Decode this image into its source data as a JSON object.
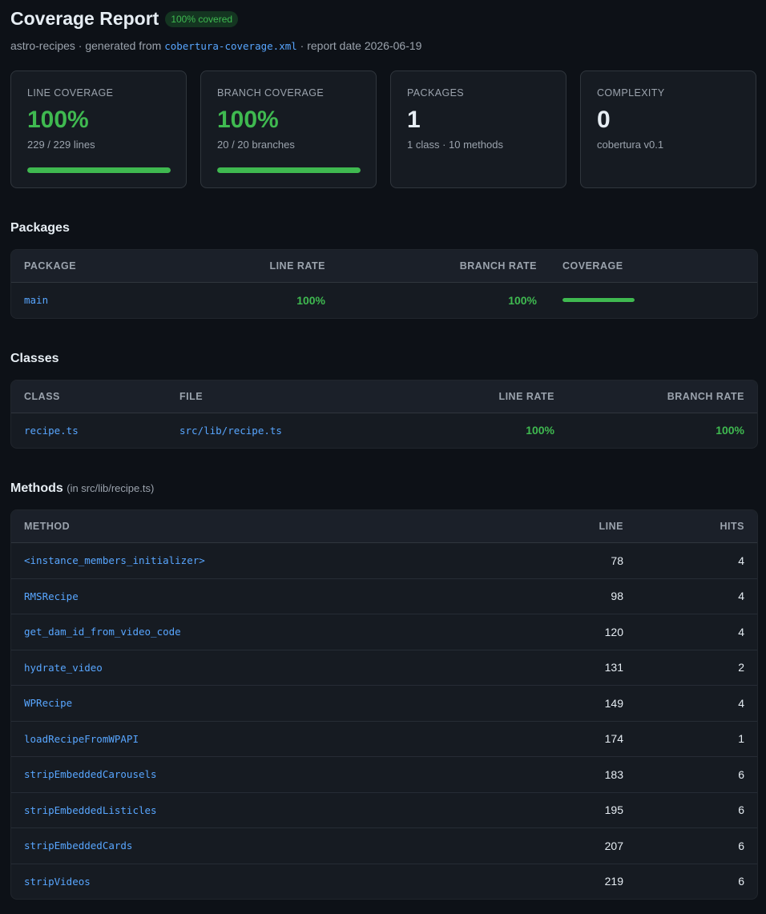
{
  "header": {
    "title": "Coverage Report",
    "badge": "100% covered",
    "subtitle": {
      "project": "astro-recipes · generated from",
      "source_file": "cobertura-coverage.xml",
      "report_date": "· report date 2026-06-19"
    }
  },
  "summary_cards": [
    {
      "label": "LINE COVERAGE",
      "value": {
        "value": 100,
        "label": "100%"
      },
      "detail": "229 / 229 lines",
      "progress_bar": true
    },
    {
      "label": "BRANCH COVERAGE",
      "value": {
        "value": 100,
        "label": "100%"
      },
      "detail": "20 / 20 branches",
      "progress_bar": true
    },
    {
      "label": "PACKAGES",
      "value": 1,
      "detail": "1 class · 10 methods",
      "progress_bar": false
    },
    {
      "label": "COMPLEXITY",
      "value": 0,
      "detail": "cobertura v0.1",
      "progress_bar": false
    }
  ],
  "packages": {
    "title": "Packages",
    "columns": [
      "PACKAGE",
      "LINE RATE",
      "BRANCH RATE",
      "COVERAGE"
    ],
    "rows": [
      [
        "main",
        {
          "value": 100,
          "label": "100%"
        },
        {
          "value": 100,
          "label": "100%"
        }
      ]
    ]
  },
  "classes": {
    "title": "Classes",
    "columns": [
      "CLASS",
      "FILE",
      "LINE RATE",
      "BRANCH RATE"
    ],
    "rows": [
      [
        "recipe.ts",
        "src/lib/recipe.ts",
        {
          "value": 100,
          "label": "100%"
        },
        {
          "value": 100,
          "label": "100%"
        }
      ]
    ]
  },
  "methods": {
    "title": "Methods",
    "note": "(in src/lib/recipe.ts)",
    "columns": [
      "METHOD",
      "LINE",
      "HITS"
    ],
    "rows": [
      [
        "<instance_members_initializer>",
        78,
        4
      ],
      [
        "RMSRecipe",
        98,
        4
      ],
      [
        "get_dam_id_from_video_code",
        120,
        4
      ],
      [
        "hydrate_video",
        131,
        2
      ],
      [
        "WPRecipe",
        149,
        4
      ],
      [
        "loadRecipeFromWPAPI",
        174,
        1
      ],
      [
        "stripEmbeddedCarousels",
        183,
        6
      ],
      [
        "stripEmbeddedListicles",
        195,
        6
      ],
      [
        "stripEmbeddedCards",
        207,
        6
      ],
      [
        "stripVideos",
        219,
        6
      ]
    ]
  }
}
